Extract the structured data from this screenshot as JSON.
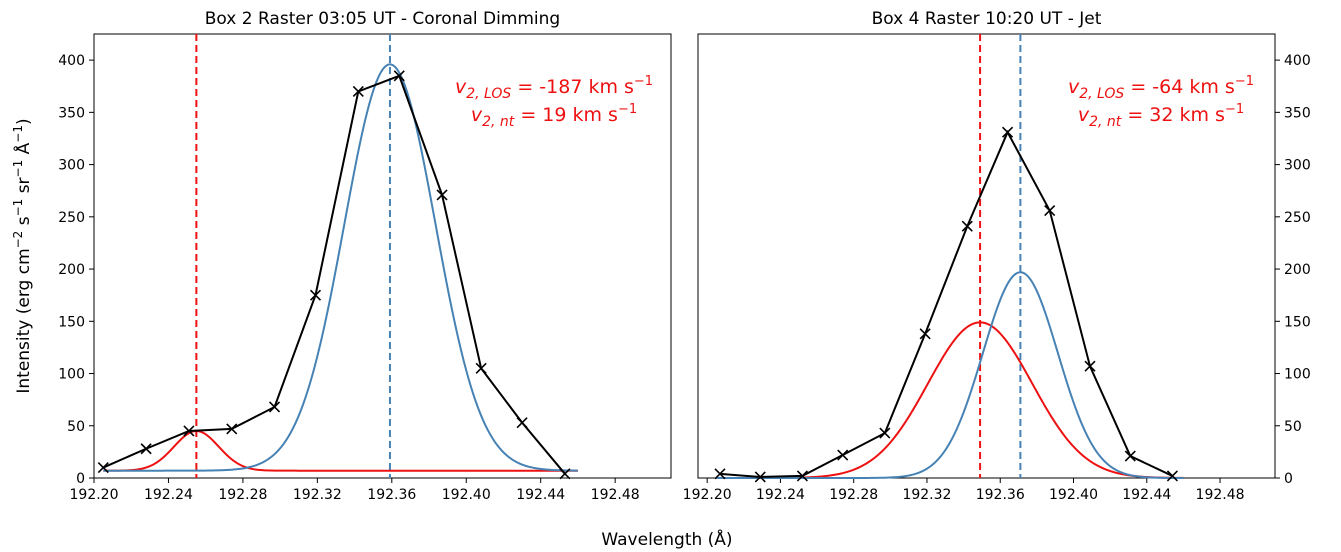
{
  "figure": {
    "xlabel": "Wavelength (Å)",
    "ylabel_parts": [
      "Intensity (erg cm",
      "−2",
      " s",
      "−1",
      " sr",
      "−1",
      " Å",
      "−1",
      ")"
    ]
  },
  "chart_data": [
    {
      "type": "line",
      "title": "Box 2 Raster 03:05 UT - Coronal Dimming",
      "xlim": [
        192.2,
        192.51
      ],
      "ylim": [
        0,
        425
      ],
      "xticks": [
        192.2,
        192.24,
        192.28,
        192.32,
        192.36,
        192.4,
        192.44,
        192.48
      ],
      "xtick_labels": [
        "192.20",
        "192.24",
        "192.28",
        "192.32",
        "192.36",
        "192.40",
        "192.44",
        "192.48"
      ],
      "yticks": [
        0,
        50,
        100,
        150,
        200,
        250,
        300,
        350,
        400
      ],
      "ytick_labels": [
        "0",
        "50",
        "100",
        "150",
        "200",
        "250",
        "300",
        "350",
        "400"
      ],
      "ytick_side": "left",
      "grid": false,
      "series": [
        {
          "color": "#000000",
          "marker": "x",
          "x": [
            192.205,
            192.228,
            192.251,
            192.274,
            192.297,
            192.319,
            192.342,
            192.364,
            192.387,
            192.408,
            192.43,
            192.453
          ],
          "y": [
            10,
            28,
            45,
            47,
            68,
            175,
            370,
            385,
            271,
            105,
            53,
            4
          ]
        },
        {
          "color": "#ee1111",
          "style": "gaussian",
          "center": 192.255,
          "amplitude": 38,
          "sigma": 0.012,
          "baseline": 7,
          "x_end": 192.46
        }
      ],
      "fit_curve": {
        "color": "#4682b4",
        "style": "gaussian",
        "center": 192.359,
        "amplitude": 389,
        "sigma": 0.0245,
        "baseline": 7,
        "x_start": 192.205,
        "x_end": 192.46
      },
      "vlines": [
        {
          "x": 192.255,
          "color": "#ee1111"
        },
        {
          "x": 192.359,
          "color": "#4682b4"
        }
      ],
      "annotation": {
        "line1": {
          "v": "v",
          "sub": "2, LOS",
          "value": " = -187 km s",
          "sup": "−1"
        },
        "line2": {
          "v": "v",
          "sub": "2, nt",
          "value": " = 19 km s",
          "sup": "−1"
        },
        "color": "#ee1111",
        "position": "top-right"
      }
    },
    {
      "type": "line",
      "title": "Box 4 Raster 10:20 UT - Jet",
      "xlim": [
        192.195,
        192.51
      ],
      "ylim": [
        0,
        425
      ],
      "xticks": [
        192.2,
        192.24,
        192.28,
        192.32,
        192.36,
        192.4,
        192.44,
        192.48
      ],
      "xtick_labels": [
        "192.20",
        "192.24",
        "192.28",
        "192.32",
        "192.36",
        "192.40",
        "192.44",
        "192.48"
      ],
      "yticks": [
        0,
        50,
        100,
        150,
        200,
        250,
        300,
        350,
        400
      ],
      "ytick_labels": [
        "0",
        "50",
        "100",
        "150",
        "200",
        "250",
        "300",
        "350",
        "400"
      ],
      "ytick_side": "right",
      "grid": false,
      "series": [
        {
          "color": "#000000",
          "marker": "x",
          "x": [
            192.207,
            192.229,
            192.252,
            192.274,
            192.297,
            192.319,
            192.342,
            192.364,
            192.387,
            192.409,
            192.431,
            192.454
          ],
          "y": [
            4,
            1,
            2,
            22,
            43,
            138,
            241,
            331,
            256,
            107,
            21,
            2
          ]
        },
        {
          "color": "#ee1111",
          "style": "gaussian",
          "center": 192.349,
          "amplitude": 149,
          "sigma": 0.0285,
          "baseline": 0,
          "x_start": 192.205,
          "x_end": 192.46
        }
      ],
      "fit_curve": {
        "color": "#4682b4",
        "style": "gaussian",
        "center": 192.371,
        "amplitude": 197,
        "sigma": 0.0205,
        "baseline": 0,
        "x_start": 192.205,
        "x_end": 192.46
      },
      "vlines": [
        {
          "x": 192.349,
          "color": "#ee1111"
        },
        {
          "x": 192.371,
          "color": "#4682b4"
        }
      ],
      "annotation": {
        "line1": {
          "v": "v",
          "sub": "2, LOS",
          "value": " = -64 km s",
          "sup": "−1"
        },
        "line2": {
          "v": "v",
          "sub": "2, nt",
          "value": " = 32 km s",
          "sup": "−1"
        },
        "color": "#ee1111",
        "position": "top-right"
      }
    }
  ]
}
